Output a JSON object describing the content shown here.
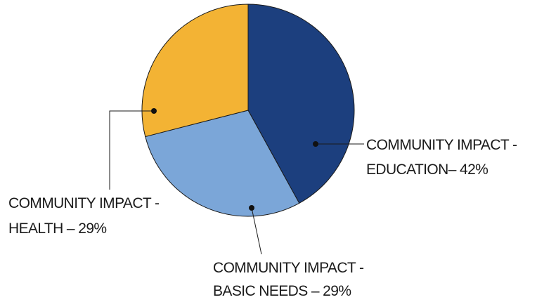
{
  "chart_data": {
    "type": "pie",
    "slices": [
      {
        "label_line1": "COMMUNITY IMPACT -",
        "label_line2": "EDUCATION– 42%",
        "value": 42,
        "color": "#1c3f7e"
      },
      {
        "label_line1": "COMMUNITY IMPACT -",
        "label_line2": "BASIC NEEDS – 29%",
        "value": 29,
        "color": "#7ba6d8"
      },
      {
        "label_line1": "COMMUNITY IMPACT -",
        "label_line2": "HEALTH – 29%",
        "value": 29,
        "color": "#f3b334"
      }
    ],
    "start_angle_deg": 0,
    "direction": "clockwise",
    "legend": "none"
  }
}
